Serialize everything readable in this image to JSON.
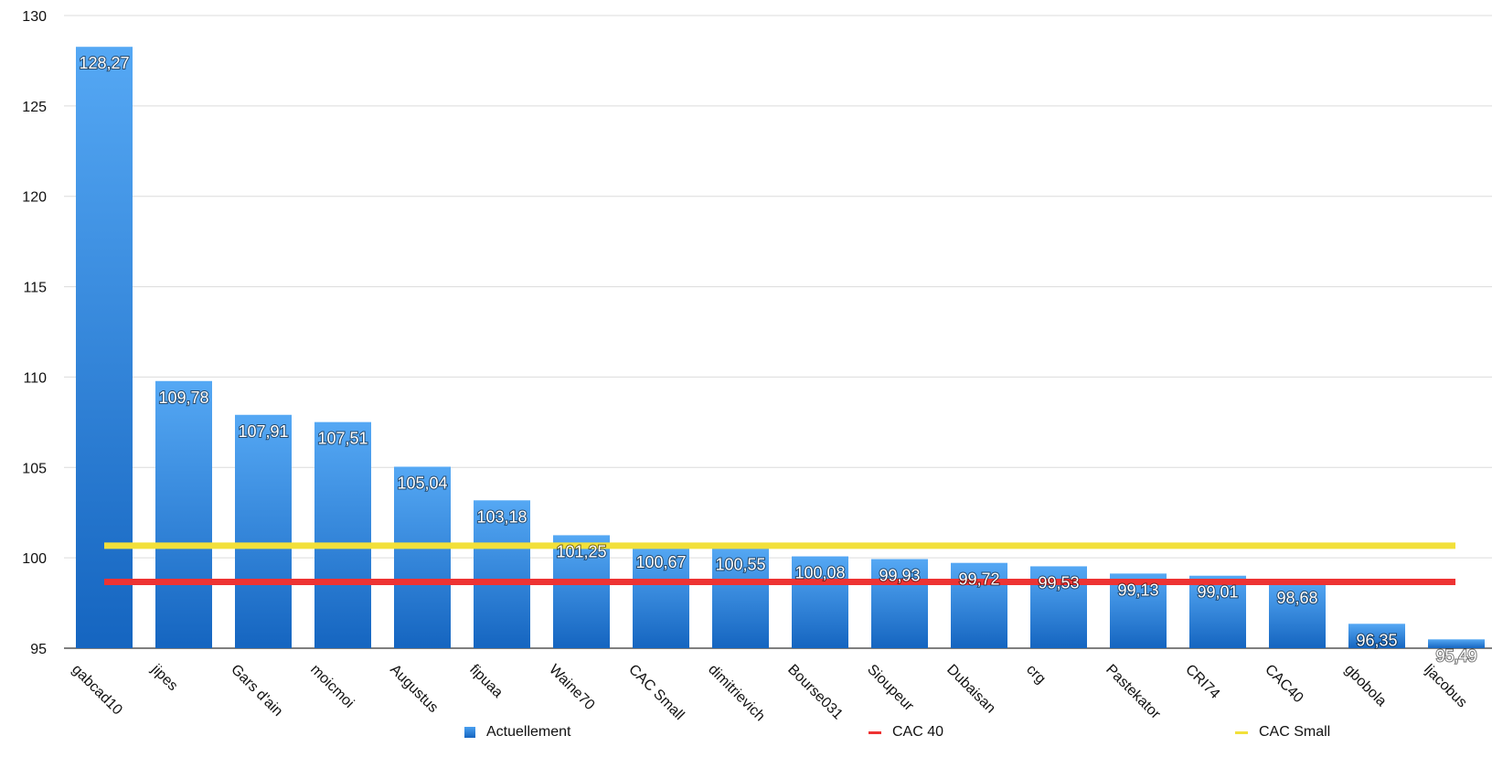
{
  "chart_data": {
    "type": "bar",
    "title": "",
    "xlabel": "",
    "ylabel": "",
    "ylim": [
      95,
      130
    ],
    "yticks": [
      95,
      100,
      105,
      110,
      115,
      120,
      125,
      130
    ],
    "grid": true,
    "legend_placement": "bottom",
    "categories": [
      "gabcad10",
      "jipes",
      "Gars d'ain",
      "moicmoi",
      "Augustus",
      "fipuaa",
      "Waine70",
      "CAC Small",
      "dimitrievich",
      "Bourse031",
      "Sioupeur",
      "Dubaisan",
      "crg",
      "Pastekator",
      "CRI74",
      "CAC40",
      "gbobola",
      "ljacobus"
    ],
    "series": [
      {
        "name": "Actuellement",
        "kind": "bar",
        "color": "#2f86e0",
        "values": [
          128.27,
          109.78,
          107.91,
          107.51,
          105.04,
          103.18,
          101.25,
          100.67,
          100.55,
          100.08,
          99.93,
          99.72,
          99.53,
          99.13,
          99.01,
          98.68,
          96.35,
          95.49
        ],
        "labels": [
          "128,27",
          "109,78",
          "107,91",
          "107,51",
          "105,04",
          "103,18",
          "101,25",
          "100,67",
          "100,55",
          "100,08",
          "99,93",
          "99,72",
          "99,53",
          "99,13",
          "99,01",
          "98,68",
          "96,35",
          "95,49"
        ]
      },
      {
        "name": "CAC 40",
        "kind": "line",
        "color": "#ee3333",
        "value": 98.67
      },
      {
        "name": "CAC Small",
        "kind": "line",
        "color": "#f2e03a",
        "value": 100.67
      }
    ]
  }
}
